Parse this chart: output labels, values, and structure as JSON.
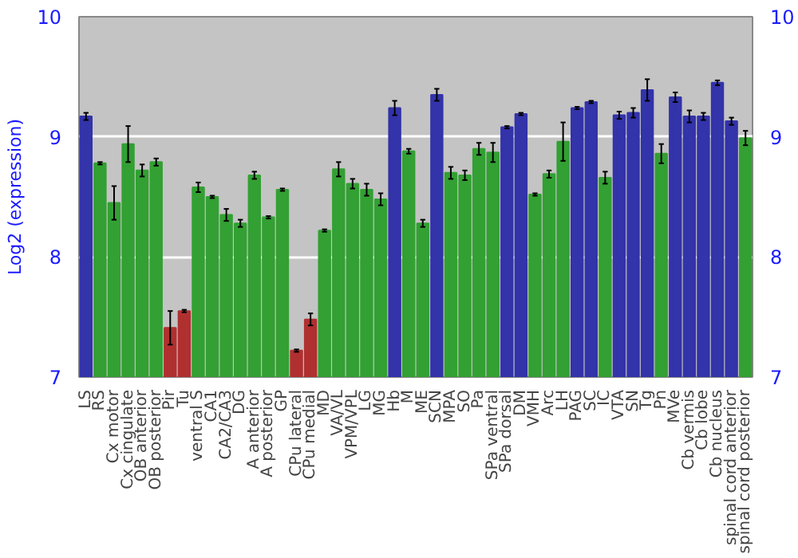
{
  "chart_data": {
    "type": "bar",
    "ylabel": "Log2 (expression)",
    "categories": [
      "LS",
      "RS",
      "Cx motor",
      "Cx cingulate",
      "OB anterior",
      "OB posterior",
      "Pir",
      "Tu",
      "ventral S",
      "CA1",
      "CA2/CA3",
      "DG",
      "A anterior",
      "A posterior",
      "GP",
      "CPu lateral",
      "CPu medial",
      "MD",
      "VA/VL",
      "VPM/VPL",
      "LG",
      "MG",
      "Hb",
      "M",
      "ME",
      "SCN",
      "MPA",
      "SO",
      "Pa",
      "SPa ventral",
      "SPa dorsal",
      "DM",
      "VMH",
      "Arc",
      "LH",
      "PAG",
      "SC",
      "IC",
      "VTA",
      "SN",
      "Tg",
      "Pn",
      "MVe",
      "Cb vermis",
      "Cb lobe",
      "Cb nucleus",
      "spinal cord anterior",
      "spinal cord posterior"
    ],
    "values": [
      9.17,
      8.78,
      8.45,
      8.94,
      8.72,
      8.79,
      7.41,
      7.55,
      8.58,
      8.5,
      8.35,
      8.28,
      8.68,
      8.33,
      8.56,
      7.22,
      7.48,
      8.22,
      8.73,
      8.61,
      8.56,
      8.48,
      9.24,
      8.88,
      8.28,
      9.35,
      8.7,
      8.68,
      8.9,
      8.87,
      9.08,
      9.19,
      8.52,
      8.69,
      8.96,
      9.24,
      9.29,
      8.66,
      9.18,
      9.2,
      9.39,
      8.86,
      9.33,
      9.17,
      9.17,
      9.45,
      9.13,
      8.99
    ],
    "errors": [
      0.03,
      0.01,
      0.14,
      0.15,
      0.05,
      0.03,
      0.14,
      0.01,
      0.04,
      0.01,
      0.05,
      0.03,
      0.03,
      0.01,
      0.01,
      0.01,
      0.05,
      0.01,
      0.06,
      0.04,
      0.05,
      0.05,
      0.06,
      0.02,
      0.03,
      0.05,
      0.05,
      0.04,
      0.05,
      0.08,
      0.01,
      0.01,
      0.01,
      0.03,
      0.16,
      0.01,
      0.01,
      0.05,
      0.03,
      0.04,
      0.09,
      0.08,
      0.04,
      0.05,
      0.03,
      0.02,
      0.03,
      0.06
    ],
    "colors": [
      "#3333aa",
      "#33a033",
      "#33a033",
      "#33a033",
      "#33a033",
      "#33a033",
      "#b03030",
      "#b03030",
      "#33a033",
      "#33a033",
      "#33a033",
      "#33a033",
      "#33a033",
      "#33a033",
      "#33a033",
      "#b03030",
      "#b03030",
      "#33a033",
      "#33a033",
      "#33a033",
      "#33a033",
      "#33a033",
      "#3333aa",
      "#33a033",
      "#33a033",
      "#3333aa",
      "#33a033",
      "#33a033",
      "#33a033",
      "#33a033",
      "#3333aa",
      "#3333aa",
      "#33a033",
      "#33a033",
      "#33a033",
      "#3333aa",
      "#3333aa",
      "#33a033",
      "#3333aa",
      "#3333aa",
      "#3333aa",
      "#33a033",
      "#3333aa",
      "#3333aa",
      "#3333aa",
      "#3333aa",
      "#3333aa",
      "#33a033"
    ],
    "ylim": [
      7,
      10
    ],
    "yticks": [
      7,
      8,
      9,
      10
    ],
    "y2lim": [
      7,
      10
    ],
    "y2ticks": [
      7,
      8,
      9,
      10
    ],
    "grid": "y"
  }
}
